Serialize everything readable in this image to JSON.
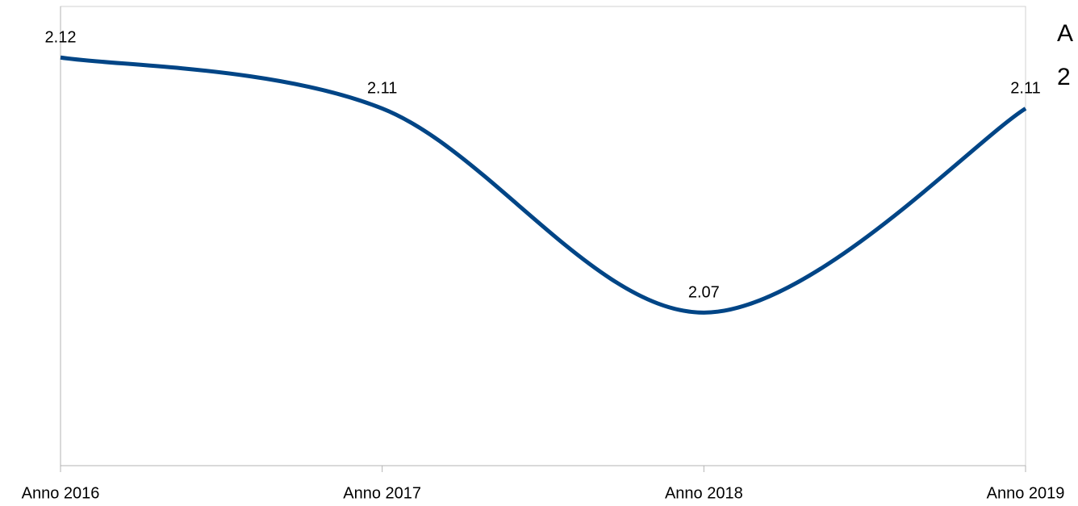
{
  "chart_data": {
    "type": "line",
    "categories": [
      "Anno 2016",
      "Anno 2017",
      "Anno 2018",
      "Anno 2019"
    ],
    "series": [
      {
        "color": "#004586",
        "values": [
          2.12,
          2.11,
          2.07,
          2.11
        ]
      }
    ],
    "ylim": [
      2.04,
      2.13
    ],
    "smooth": true,
    "annotations": [
      "A",
      "2"
    ]
  }
}
